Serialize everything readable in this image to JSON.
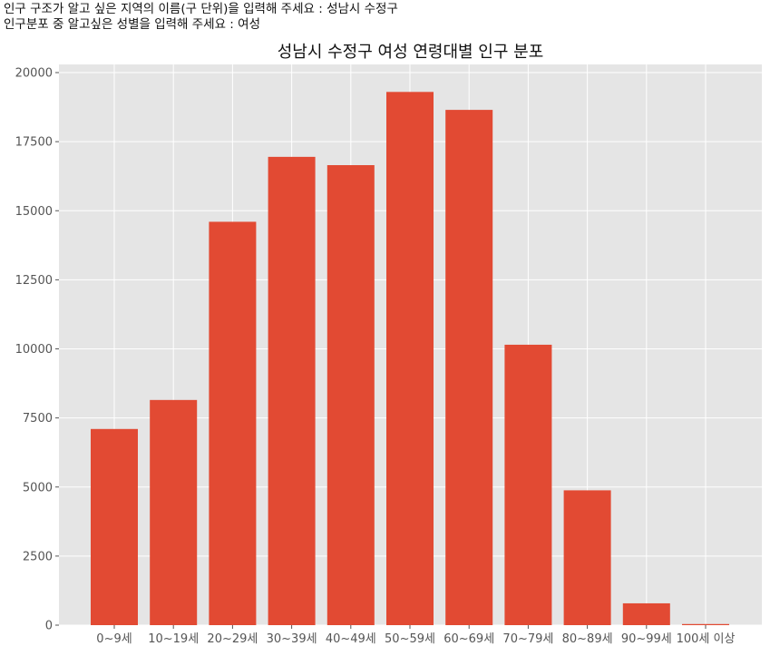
{
  "console": {
    "prompt1": "인구 구조가 알고 싶은 지역의 이름(구 단위)을 입력해 주세요 : ",
    "answer1": "성남시 수정구",
    "prompt2": "인구분포 중 알고싶은 성별을 입력해 주세요 : ",
    "answer2": "여성"
  },
  "colors": {
    "bar": "#E24A33",
    "plot_bg": "#E5E5E5",
    "grid": "#FFFFFF"
  },
  "chart_data": {
    "type": "bar",
    "title": "성남시 수정구 여성 연령대별 인구 분포",
    "xlabel": "",
    "ylabel": "",
    "categories": [
      "0~9세",
      "10~19세",
      "20~29세",
      "30~39세",
      "40~49세",
      "50~59세",
      "60~69세",
      "70~79세",
      "80~89세",
      "90~99세",
      "100세 이상"
    ],
    "values": [
      7100,
      8150,
      14600,
      16950,
      16650,
      19300,
      18650,
      10150,
      4880,
      790,
      40
    ],
    "ylim": [
      0,
      20000
    ],
    "yticks": [
      0,
      2500,
      5000,
      7500,
      10000,
      12500,
      15000,
      17500,
      20000
    ],
    "grid": true
  }
}
